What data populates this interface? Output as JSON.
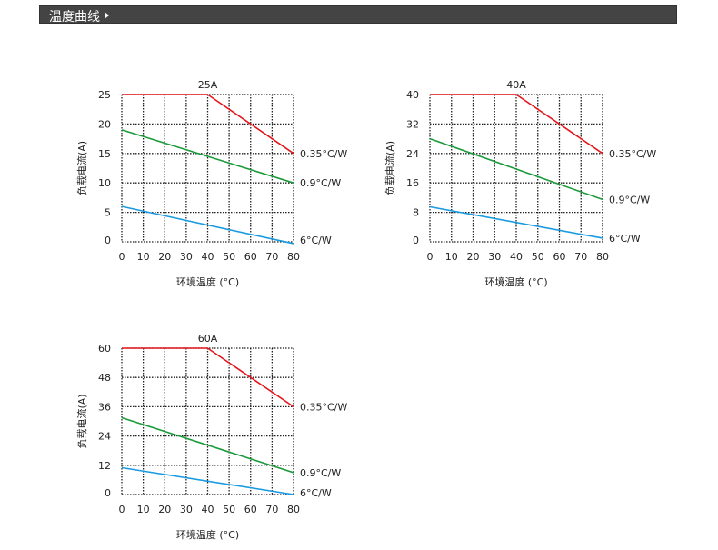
{
  "header": {
    "title": "温度曲线",
    "arrow_icon": "caret-right-icon"
  },
  "chart_data": [
    {
      "type": "line",
      "title": "25A",
      "xlabel": "环境温度 (°C)",
      "ylabel": "负载电流(A)",
      "xlim": [
        0,
        80
      ],
      "ylim": [
        0,
        25
      ],
      "xticks": [
        0,
        10,
        20,
        30,
        40,
        50,
        60,
        70,
        80
      ],
      "yticks": [
        0,
        5,
        10,
        15,
        20,
        25
      ],
      "grid": true,
      "series": [
        {
          "name": "0.35°C/W",
          "color": "#e3161b",
          "points": [
            [
              0,
              25
            ],
            [
              40,
              25
            ],
            [
              80,
              15
            ]
          ]
        },
        {
          "name": "0.9°C/W",
          "color": "#1a9a3a",
          "points": [
            [
              0,
              19
            ],
            [
              80,
              10
            ]
          ]
        },
        {
          "name": "6°C/W",
          "color": "#1a9be0",
          "points": [
            [
              0,
              6
            ],
            [
              80,
              -0.3
            ]
          ]
        }
      ]
    },
    {
      "type": "line",
      "title": "40A",
      "xlabel": "环境温度 (°C)",
      "ylabel": "负载电流(A)",
      "xlim": [
        0,
        80
      ],
      "ylim": [
        0,
        40
      ],
      "xticks": [
        0,
        10,
        20,
        30,
        40,
        50,
        60,
        70,
        80
      ],
      "yticks": [
        0,
        8,
        16,
        24,
        32,
        40
      ],
      "grid": true,
      "series": [
        {
          "name": "0.35°C/W",
          "color": "#e3161b",
          "points": [
            [
              0,
              40
            ],
            [
              40,
              40
            ],
            [
              80,
              24
            ]
          ]
        },
        {
          "name": "0.9°C/W",
          "color": "#1a9a3a",
          "points": [
            [
              0,
              28
            ],
            [
              80,
              11.5
            ]
          ]
        },
        {
          "name": "6°C/W",
          "color": "#1a9be0",
          "points": [
            [
              0,
              9.5
            ],
            [
              80,
              1
            ]
          ]
        }
      ]
    },
    {
      "type": "line",
      "title": "60A",
      "xlabel": "环境温度 (°C)",
      "ylabel": "负载电流(A)",
      "xlim": [
        0,
        80
      ],
      "ylim": [
        0,
        60
      ],
      "xticks": [
        0,
        10,
        20,
        30,
        40,
        50,
        60,
        70,
        80
      ],
      "yticks": [
        0,
        12,
        24,
        36,
        48,
        60
      ],
      "grid": true,
      "series": [
        {
          "name": "0.35°C/W",
          "color": "#e3161b",
          "points": [
            [
              0,
              60
            ],
            [
              40,
              60
            ],
            [
              80,
              36
            ]
          ]
        },
        {
          "name": "0.9°C/W",
          "color": "#1a9a3a",
          "points": [
            [
              0,
              31.5
            ],
            [
              80,
              9
            ]
          ]
        },
        {
          "name": "6°C/W",
          "color": "#1a9be0",
          "points": [
            [
              0,
              11
            ],
            [
              80,
              0
            ]
          ]
        }
      ]
    }
  ]
}
